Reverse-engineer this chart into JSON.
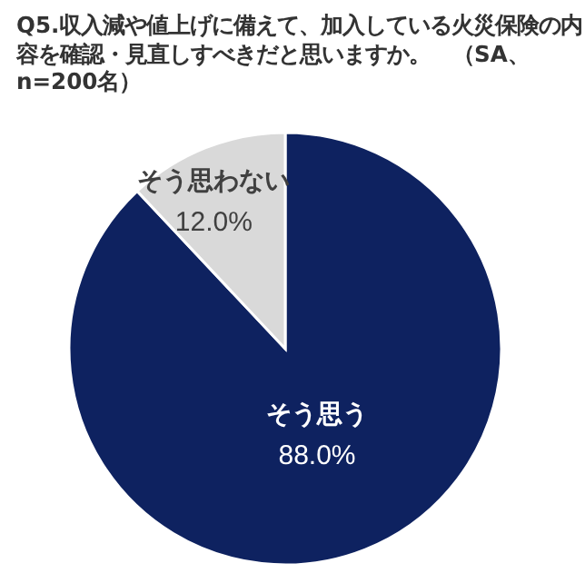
{
  "chart_data": {
    "type": "pie",
    "title": "Q5.収入減や値上げに備えて、加入している火災保険の内容を確認・見直しすべきだと思いますか。　（SA、n=200名）",
    "categories": [
      "そう思う",
      "そう思わない"
    ],
    "values": [
      88.0,
      12.0
    ],
    "colors": [
      "#0e2260",
      "#d9d9d9"
    ],
    "value_labels": [
      "88.0%",
      "12.0%"
    ]
  }
}
